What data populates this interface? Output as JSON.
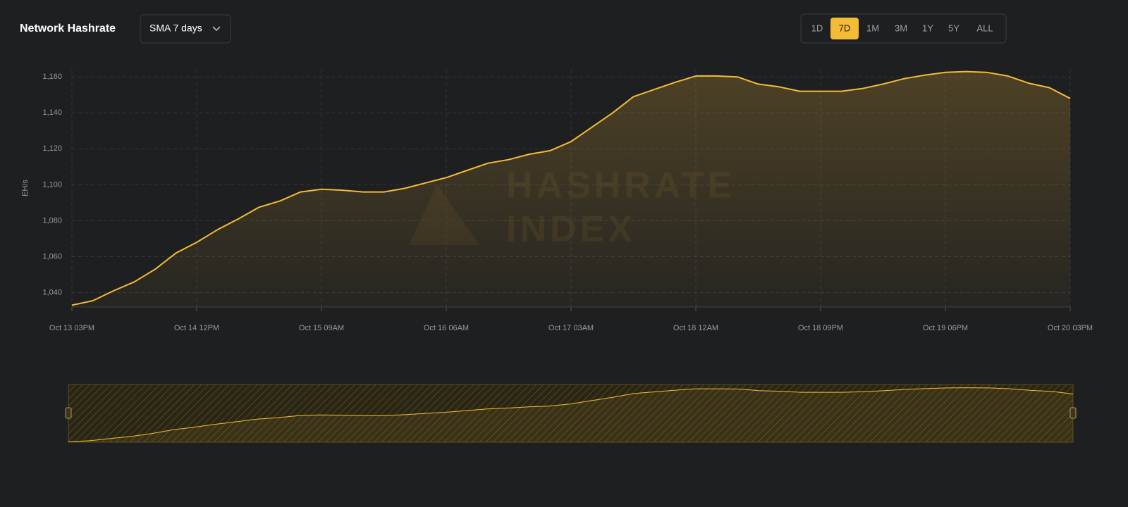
{
  "header": {
    "title": "Network Hashrate",
    "dropdown": "SMA 7 days",
    "ranges": [
      "1D",
      "7D",
      "1M",
      "3M",
      "1Y",
      "5Y",
      "ALL"
    ],
    "active_range": "7D"
  },
  "watermark": [
    "HASHRATE",
    "INDEX"
  ],
  "chart_data": {
    "type": "area",
    "y_label": "EH/s",
    "color": "#f4bb36",
    "categories": [
      "Oct 13 03PM",
      null,
      null,
      null,
      null,
      null,
      "Oct 14 12PM",
      null,
      null,
      null,
      null,
      null,
      "Oct 15 09AM",
      null,
      null,
      null,
      null,
      null,
      "Oct 16 06AM",
      null,
      null,
      null,
      null,
      null,
      "Oct 17 03AM",
      null,
      null,
      null,
      null,
      null,
      "Oct 18 12AM",
      null,
      null,
      null,
      null,
      null,
      "Oct 18 09PM",
      null,
      null,
      null,
      null,
      null,
      "Oct 19 06PM",
      null,
      null,
      null,
      null,
      null,
      "Oct 20 03PM"
    ],
    "values": [
      1033,
      1035.5,
      1041,
      1046,
      1053,
      1062,
      1068,
      1075,
      1081,
      1087.5,
      1091,
      1096,
      1097.5,
      1097,
      1096,
      1096,
      1098,
      1101,
      1104,
      1108,
      1112,
      1114,
      1117,
      1119,
      1124,
      1132,
      1140,
      1149,
      1153,
      1157,
      1160.5,
      1160.5,
      1160,
      1156,
      1154.5,
      1152,
      1152,
      1152,
      1153.5,
      1156,
      1159,
      1161,
      1162.5,
      1163,
      1162.5,
      1160.5,
      1156.5,
      1154,
      1148
    ],
    "ylim": [
      1032,
      1164
    ],
    "yticks": [
      {
        "value": 1040,
        "label": "1,040"
      },
      {
        "value": 1060,
        "label": "1,060"
      },
      {
        "value": 1080,
        "label": "1,080"
      },
      {
        "value": 1100,
        "label": "1,100"
      },
      {
        "value": 1120,
        "label": "1,120"
      },
      {
        "value": 1140,
        "label": "1,140"
      },
      {
        "value": 1160,
        "label": "1,160"
      }
    ],
    "grid": true
  }
}
